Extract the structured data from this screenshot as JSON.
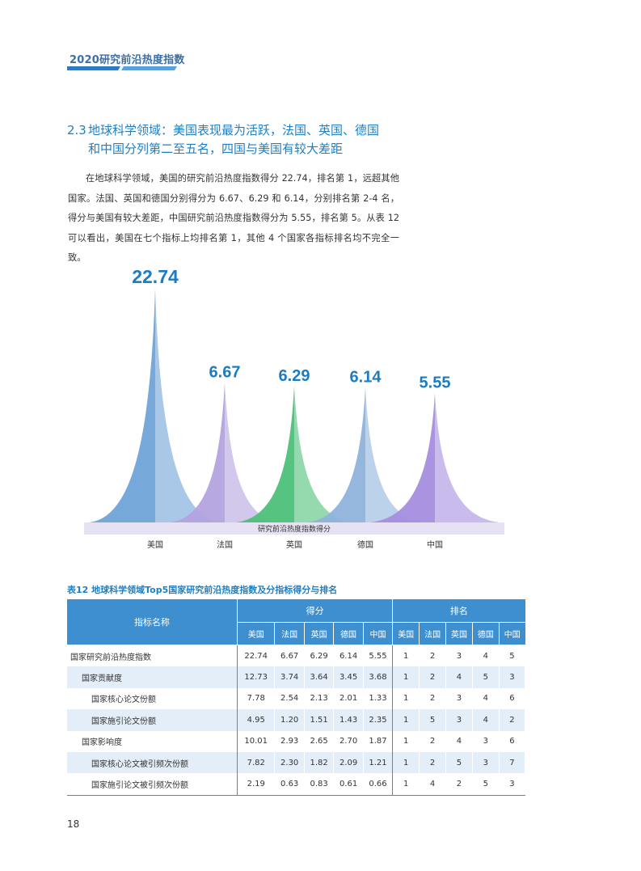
{
  "header": {
    "title": "2020研究前沿热度指数"
  },
  "section": {
    "number": "2.3",
    "heading_line1": "地球科学领域：美国表现最为活跃，法国、英国、德国",
    "heading_line2": "和中国分列第二至五名，四国与美国有较大差距"
  },
  "paragraph": "在地球科学领域，美国的研究前沿热度指数得分 22.74，排名第 1，远超其他国家。法国、英国和德国分别得分为 6.67、6.29 和 6.14，分别排名第 2-4 名，得分与美国有较大差距，中国研究前沿热度指数得分为 5.55，排名第 5。从表 12 可以看出，美国在七个指标上均排名第 1，其他 4 个国家各指标排名均不完全一致。",
  "chart_data": {
    "type": "area",
    "xlabel": "研究前沿热度指数得分",
    "categories": [
      "美国",
      "法国",
      "英国",
      "德国",
      "中国"
    ],
    "values": [
      22.74,
      6.67,
      6.29,
      6.14,
      5.55
    ],
    "colors": [
      "#6fa3d8",
      "#b3a3e0",
      "#4ec07a",
      "#8fb3dc",
      "#a58ee0"
    ],
    "value_label_color": "#1b7cc3"
  },
  "table": {
    "caption": "表12  地球科学领域Top5国家研究前沿热度指数及分指标得分与排名",
    "header_indicator": "指标名称",
    "header_score": "得分",
    "header_rank": "排名",
    "countries": [
      "美国",
      "法国",
      "英国",
      "德国",
      "中国"
    ],
    "rows": [
      {
        "name": "国家研究前沿热度指数",
        "scores": [
          "22.74",
          "6.67",
          "6.29",
          "6.14",
          "5.55"
        ],
        "ranks": [
          "1",
          "2",
          "3",
          "4",
          "5"
        ]
      },
      {
        "name": "国家贡献度",
        "scores": [
          "12.73",
          "3.74",
          "3.64",
          "3.45",
          "3.68"
        ],
        "ranks": [
          "1",
          "2",
          "4",
          "5",
          "3"
        ]
      },
      {
        "name": "国家核心论文份额",
        "scores": [
          "7.78",
          "2.54",
          "2.13",
          "2.01",
          "1.33"
        ],
        "ranks": [
          "1",
          "2",
          "3",
          "4",
          "6"
        ]
      },
      {
        "name": "国家施引论文份额",
        "scores": [
          "4.95",
          "1.20",
          "1.51",
          "1.43",
          "2.35"
        ],
        "ranks": [
          "1",
          "5",
          "3",
          "4",
          "2"
        ]
      },
      {
        "name": "国家影响度",
        "scores": [
          "10.01",
          "2.93",
          "2.65",
          "2.70",
          "1.87"
        ],
        "ranks": [
          "1",
          "2",
          "4",
          "3",
          "6"
        ]
      },
      {
        "name": "国家核心论文被引频次份额",
        "scores": [
          "7.82",
          "2.30",
          "1.82",
          "2.09",
          "1.21"
        ],
        "ranks": [
          "1",
          "2",
          "5",
          "3",
          "7"
        ]
      },
      {
        "name": "国家施引论文被引频次份额",
        "scores": [
          "2.19",
          "0.63",
          "0.83",
          "0.61",
          "0.66"
        ],
        "ranks": [
          "1",
          "4",
          "2",
          "5",
          "3"
        ]
      }
    ]
  },
  "page_number": "18"
}
